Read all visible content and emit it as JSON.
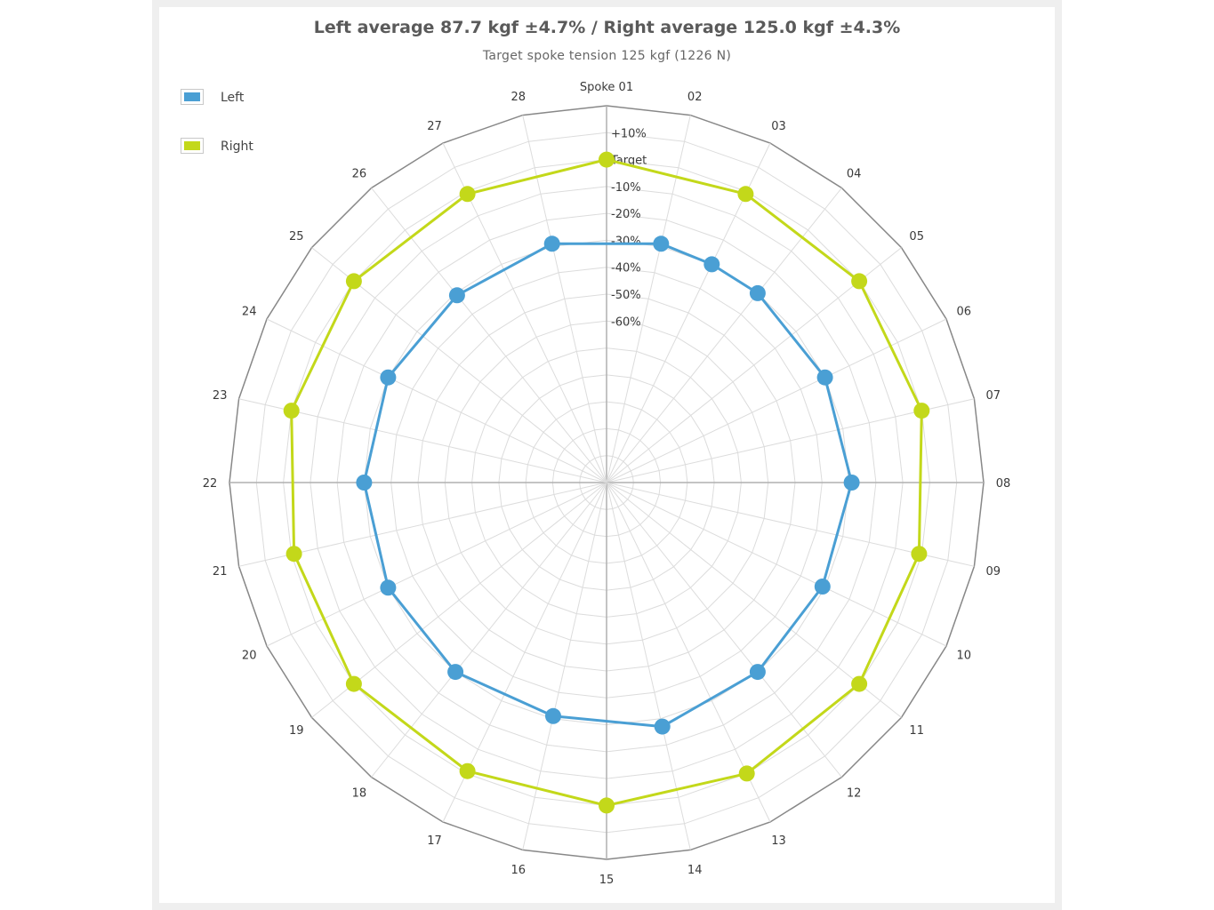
{
  "chart": {
    "title": "Left average 87.7 kgf ±4.7% / Right average 125.0 kgf ±4.3%",
    "subtitle": "Target spoke tension 125 kgf (1226 N)"
  },
  "colors": {
    "left": "#4a9fd4",
    "right": "#c3d81a",
    "grid": "#dcdcdc",
    "outer_ring": "#888888"
  },
  "chart_data": {
    "type": "radar",
    "title": "Left average 87.7 kgf ±4.7% / Right average 125.0 kgf ±4.3%",
    "subtitle": "Target spoke tension 125 kgf (1226 N)",
    "categories": [
      "Spoke 01",
      "02",
      "03",
      "04",
      "05",
      "06",
      "07",
      "08",
      "09",
      "10",
      "11",
      "12",
      "13",
      "14",
      "15",
      "16",
      "17",
      "18",
      "19",
      "20",
      "21",
      "22",
      "23",
      "24",
      "25",
      "26",
      "27",
      "28"
    ],
    "ring_labels": [
      "+10%",
      "Target",
      "-10%",
      "-20%",
      "-30%",
      "-40%",
      "-50%",
      "-60%"
    ],
    "ring_values": [
      10,
      0,
      -10,
      -20,
      -30,
      -40,
      -50,
      -60
    ],
    "range": [
      -120,
      20
    ],
    "grid": true,
    "legend_position": "top-left",
    "series": [
      {
        "name": "Left",
        "color": "#4a9fd4",
        "values": [
          null,
          -29,
          -30,
          -30,
          null,
          -30,
          null,
          -29,
          null,
          -31,
          null,
          -30,
          null,
          -27,
          null,
          -31,
          null,
          -30,
          null,
          -30,
          null,
          -30,
          null,
          -30,
          null,
          -31,
          null,
          -29
        ]
      },
      {
        "name": "Right",
        "color": "#c3d81a",
        "values": [
          0,
          null,
          -1,
          null,
          0,
          null,
          0,
          null,
          -1,
          null,
          0,
          null,
          0,
          null,
          0,
          null,
          -1,
          null,
          0,
          null,
          -1,
          null,
          0,
          null,
          0,
          null,
          -1,
          null
        ]
      }
    ]
  },
  "legend": {
    "items": [
      {
        "label": "Left",
        "color": "#4a9fd4"
      },
      {
        "label": "Right",
        "color": "#c3d81a"
      }
    ]
  }
}
